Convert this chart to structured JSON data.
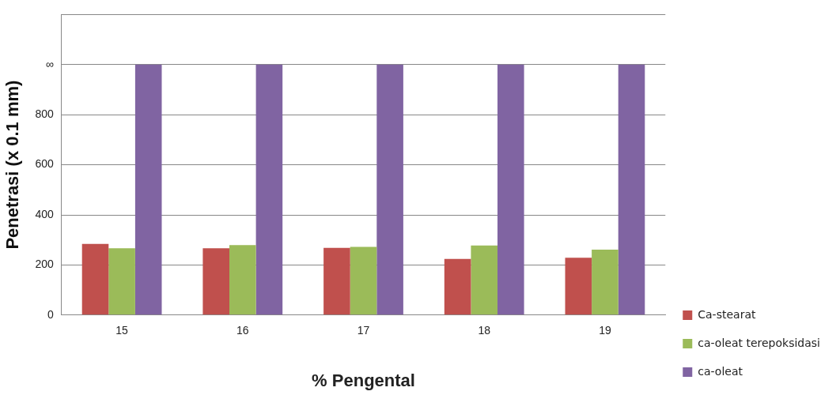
{
  "chart_data": {
    "type": "bar",
    "xlabel": "% Pengental",
    "ylabel": "Penetrasi (x 0.1 mm)",
    "categories": [
      "15",
      "16",
      "17",
      "18",
      "19"
    ],
    "series": [
      {
        "name": "Ca-stearat",
        "color": "#c0504d",
        "values": [
          284,
          267,
          268,
          224,
          229
        ]
      },
      {
        "name": "ca-oleat terepoksidasi",
        "color": "#9bbb59",
        "values": [
          267,
          279,
          272,
          278,
          261
        ]
      },
      {
        "name": "ca-oleat",
        "color": "#8064a2",
        "values": [
          1000,
          1000,
          1000,
          1000,
          1000
        ]
      }
    ],
    "ylim": [
      0,
      1200
    ],
    "yticks": [
      0,
      200,
      400,
      600,
      800,
      {
        "value": 1000,
        "label": "∞"
      },
      {
        "value": 1200,
        "label": null
      }
    ],
    "grid": "y",
    "legend": "bottom right"
  }
}
